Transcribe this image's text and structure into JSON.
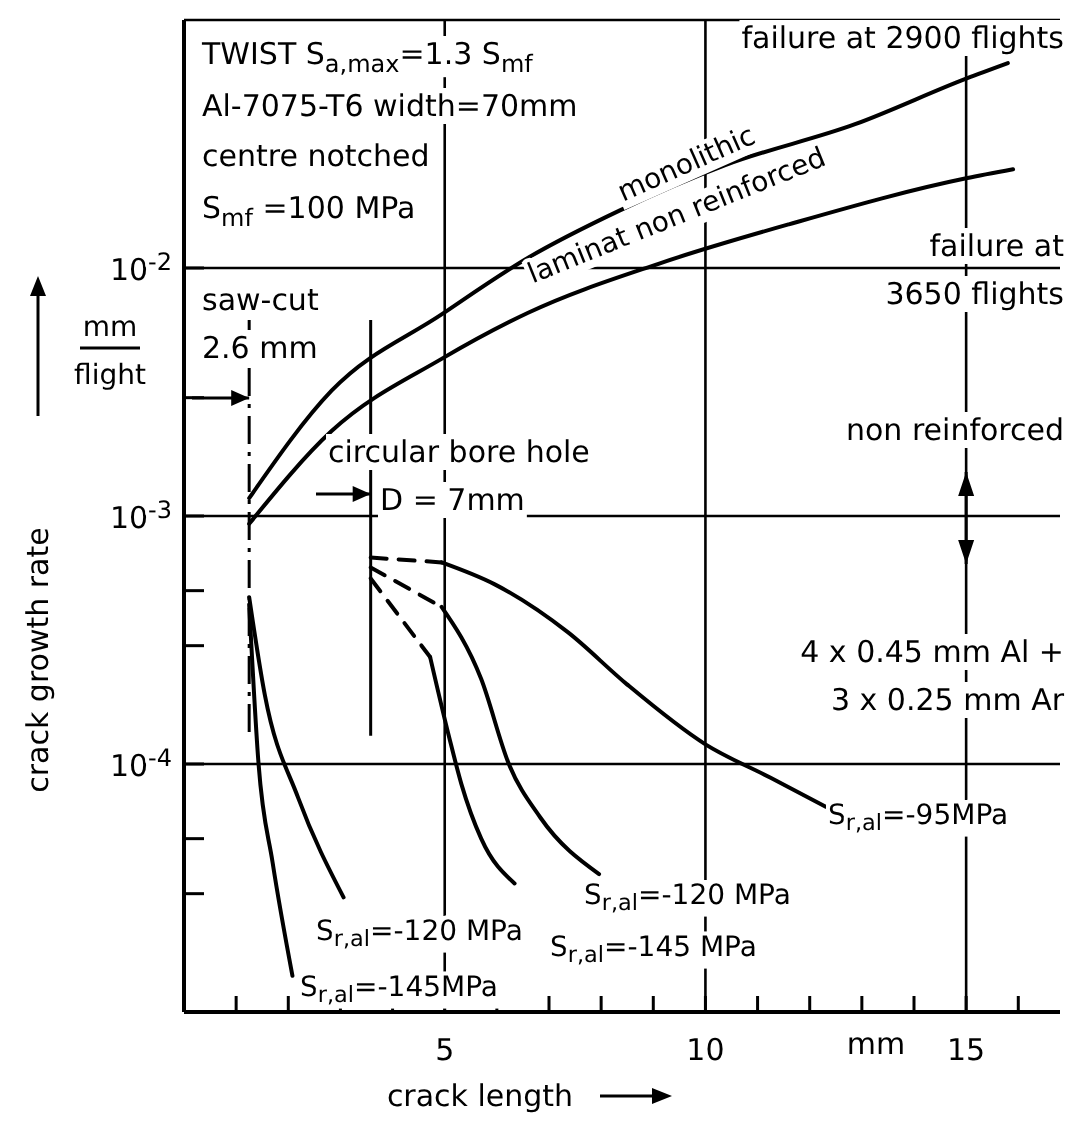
{
  "chart_data": {
    "type": "line",
    "xlabel": "crack length",
    "ylabel": "crack growth rate",
    "log": "y",
    "grid": true,
    "marker": "none",
    "line_style": "solid",
    "xlim": [
      0,
      16.8
    ],
    "ylim": [
      1e-05,
      0.1
    ],
    "xticks": [
      {
        "value": 1,
        "label": null
      },
      {
        "value": 2,
        "label": null
      },
      {
        "value": 3,
        "label": null
      },
      {
        "value": 4,
        "label": null
      },
      5,
      {
        "value": 6,
        "label": null
      },
      {
        "value": 7,
        "label": null
      },
      {
        "value": 8,
        "label": null
      },
      {
        "value": 9,
        "label": null
      },
      10,
      {
        "value": 11,
        "label": null
      },
      {
        "value": 12,
        "label": null
      },
      {
        "value": 13,
        "label": null
      },
      {
        "value": 14,
        "label": null
      },
      15,
      {
        "value": 16,
        "label": null
      }
    ],
    "yticks": [
      {
        "value": 0.01,
        "label": "10$^{-2}$"
      },
      {
        "value": 0.003,
        "label": null
      },
      {
        "value": 0.001,
        "label": "10$^{-3}$"
      },
      {
        "value": 0.0005,
        "label": null
      },
      {
        "value": 0.0003,
        "label": null
      },
      {
        "value": 0.0001,
        "label": "10$^{-4}$"
      },
      {
        "value": 5e-05,
        "label": null
      },
      {
        "value": 3e-05,
        "label": null
      }
    ],
    "series": [
      {
        "name": "monolithic",
        "color": "#000000",
        "x": [
          1.25,
          2.83,
          4.94,
          6.6,
          8.34,
          10.38,
          12.87,
          15.0,
          15.8
        ],
        "values": [
          0.00118,
          0.0032,
          0.0065,
          0.011,
          0.017,
          0.026,
          0.038,
          0.058,
          0.067
        ]
      },
      {
        "name": "laminat non reinforced",
        "color": "#000000",
        "x": [
          1.25,
          2.83,
          4.94,
          6.6,
          9.1,
          11.6,
          15.0,
          15.9
        ],
        "values": [
          0.00093,
          0.0022,
          0.0043,
          0.0066,
          0.0104,
          0.015,
          0.023,
          0.025
        ]
      },
      {
        "name": "S$_{r,al}$=-120 MPa",
        "color": "#000000",
        "x": [
          1.25,
          1.55,
          2.19,
          3.06
        ],
        "values": [
          0.00047,
          0.00019,
          7.3e-05,
          2.9e-05
        ]
      },
      {
        "name": "S$_{r,al}$=-145MPa",
        "color": "#000000",
        "x": [
          1.25,
          1.43,
          1.7,
          2.08
        ],
        "values": [
          0.00044,
          0.0001,
          4e-05,
          1.4e-05
        ]
      },
      {
        "name": "S$_{r,al}$=-95MPa",
        "color": "#000000",
        "x": [
          4.94,
          5.96,
          7.36,
          8.49,
          10.0,
          11.25,
          12.38
        ],
        "values": [
          0.00065,
          0.00053,
          0.00034,
          0.00021,
          0.00012,
          8.8e-05,
          6.6e-05
        ]
      },
      {
        "name": "S$_{r,al}$=-120 MPa",
        "color": "#000000",
        "x": [
          4.94,
          5.7,
          6.23,
          6.83,
          7.96
        ],
        "values": [
          0.00043,
          0.00022,
          0.0001,
          6.1e-05,
          3.6e-05
        ]
      },
      {
        "name": "S$_{r,al}$=-145 MPa",
        "color": "#000000",
        "x": [
          4.72,
          5.09,
          5.32,
          5.7,
          6.34
        ],
        "values": [
          0.00027,
          0.000127,
          8.3e-05,
          5e-05,
          3.3e-05
        ]
      },
      {
        "color": "#000000",
        "line_style": "dashed",
        "x": [
          3.58,
          4.94
        ],
        "values": [
          0.00068,
          0.00065
        ]
      },
      {
        "color": "#000000",
        "line_style": "dashed",
        "x": [
          3.58,
          4.94
        ],
        "values": [
          0.00062,
          0.00043
        ]
      },
      {
        "color": "#000000",
        "line_style": "dashed",
        "x": [
          3.58,
          4.72
        ],
        "values": [
          0.00056,
          0.00027
        ]
      }
    ],
    "ref_lines": [
      {
        "axis": "x",
        "value": 1.25,
        "line_style": "dashed",
        "color": "#000000"
      },
      {
        "axis": "x",
        "value": 3.58,
        "color": "#000000"
      }
    ],
    "annotations": [
      "TWIST S$_{a,max}$=1.3 S$_{mf}$",
      "Al-7075-T6 width=70mm",
      "centre notched",
      "S$_{mf}$ =100 MPa",
      "failure at 2900 flights",
      "failure at\n3650 flights",
      "saw-cut\n2.6 mm",
      "circular bore hole\nD = 7mm",
      "non reinforced",
      "4 x 0.45 mm Al +\n3 x 0.25 mm Ar",
      "mm",
      "mm",
      "flight"
    ]
  }
}
